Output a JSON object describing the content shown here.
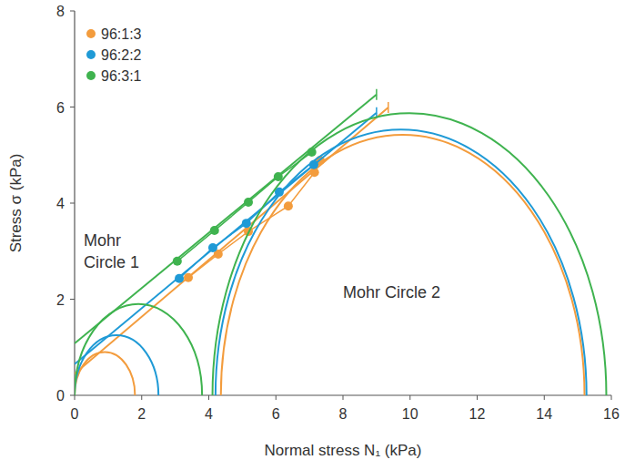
{
  "chart_data": {
    "type": "scatter",
    "xlabel": "Normal stress N₁ (kPa)",
    "ylabel": "Stress σ (kPa)",
    "xlim": [
      0,
      16
    ],
    "xticks": [
      0,
      2,
      4,
      6,
      8,
      10,
      12,
      14,
      16
    ],
    "ylim": [
      0,
      8
    ],
    "yticks": [
      0,
      2,
      4,
      6,
      8
    ],
    "legend": "upper left",
    "annotations": [
      {
        "lines": [
          "Mohr",
          "Circle 1"
        ]
      },
      {
        "lines": [
          "Mohr Circle 2"
        ]
      }
    ],
    "series": [
      {
        "name": "96:1:3",
        "color": "#f39c3d",
        "marker": "circle",
        "x": [
          3.39,
          4.28,
          5.18,
          6.37,
          7.15,
          7.32
        ],
        "values": [
          2.45,
          2.94,
          3.41,
          3.94,
          4.64,
          4.89
        ],
        "fit": {
          "x": [
            0,
            9.35
          ],
          "y": [
            0.45,
            5.99
          ]
        },
        "mohr_circles": [
          {
            "center": 0.9,
            "radius": 0.9
          },
          {
            "center": 9.78,
            "radius": 5.42
          }
        ]
      },
      {
        "name": "96:2:2",
        "color": "#1f9ad6",
        "marker": "circle",
        "x": [
          3.12,
          4.12,
          5.12,
          6.1,
          7.13
        ],
        "values": [
          2.43,
          3.07,
          3.58,
          4.23,
          4.8
        ],
        "fit": {
          "x": [
            0,
            9.0
          ],
          "y": [
            0.65,
            5.88
          ]
        },
        "mohr_circles": [
          {
            "center": 1.25,
            "radius": 1.25
          },
          {
            "center": 9.73,
            "radius": 5.53
          }
        ]
      },
      {
        "name": "96:3:1",
        "color": "#3fb34f",
        "marker": "circle",
        "x": [
          3.06,
          4.17,
          5.18,
          6.07,
          7.07
        ],
        "values": [
          2.79,
          3.43,
          4.02,
          4.55,
          5.06
        ],
        "fit": {
          "x": [
            0,
            9.0
          ],
          "y": [
            1.08,
            6.26
          ]
        },
        "mohr_circles": [
          {
            "center": 1.9,
            "radius": 1.9
          },
          {
            "center": 9.98,
            "radius": 5.87
          }
        ]
      }
    ]
  }
}
